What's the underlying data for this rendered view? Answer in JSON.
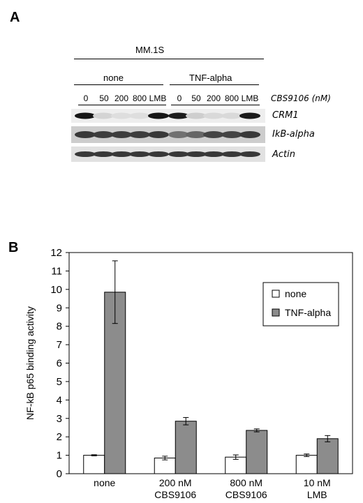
{
  "panel_a": {
    "label": "A",
    "cell_line": "MM.1S",
    "groups": [
      "none",
      "TNF-alpha"
    ],
    "lanes": [
      "0",
      "50",
      "200",
      "800",
      "LMB",
      "0",
      "50",
      "200",
      "800",
      "LMB"
    ],
    "treatment_label": "CBS9106 (nM)",
    "bands": [
      {
        "name": "CRM1",
        "intensities": [
          0.95,
          0.12,
          0.08,
          0.08,
          0.95,
          0.92,
          0.15,
          0.1,
          0.1,
          0.93
        ]
      },
      {
        "name": "IkB-alpha",
        "intensities": [
          0.8,
          0.78,
          0.78,
          0.78,
          0.8,
          0.55,
          0.6,
          0.75,
          0.75,
          0.8
        ]
      },
      {
        "name": "Actin",
        "intensities": [
          0.8,
          0.8,
          0.8,
          0.8,
          0.8,
          0.8,
          0.8,
          0.8,
          0.8,
          0.8
        ]
      }
    ]
  },
  "panel_b": {
    "label": "B"
  },
  "chart_data": {
    "type": "bar",
    "categories": [
      [
        "none"
      ],
      [
        "200 nM",
        "CBS9106"
      ],
      [
        "800 nM",
        "CBS9106"
      ],
      [
        "10 nM",
        "LMB"
      ]
    ],
    "series": [
      {
        "name": "none",
        "color": "#ffffff",
        "values": [
          1.0,
          0.85,
          0.9,
          1.0
        ],
        "errors": [
          0.03,
          0.1,
          0.12,
          0.07
        ]
      },
      {
        "name": "TNF-alpha",
        "color": "#8c8c8c",
        "values": [
          9.85,
          2.85,
          2.35,
          1.9
        ],
        "errors": [
          1.7,
          0.2,
          0.08,
          0.17
        ]
      }
    ],
    "ylabel": "NF-kB p65 binding activity",
    "xlabel": "",
    "ylim": [
      0,
      12
    ],
    "yticks": [
      0,
      1,
      2,
      3,
      4,
      5,
      6,
      7,
      8,
      9,
      10,
      11,
      12
    ],
    "legend_position": "top-right",
    "grid": false
  }
}
